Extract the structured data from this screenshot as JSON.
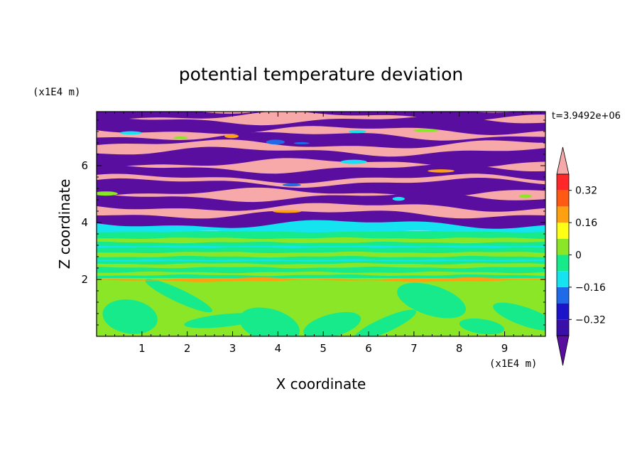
{
  "chart_data": {
    "type": "heatmap",
    "title": "potential temperature deviation",
    "xlabel": "X coordinate",
    "ylabel": "Z coordinate",
    "x_units": "(x1E4 m)",
    "y_units": "(x1E4 m)",
    "time_label": "t=3.9492e+06",
    "xlim": [
      0,
      9.9
    ],
    "ylim": [
      0,
      7.9
    ],
    "x_ticks": [
      1,
      2,
      3,
      4,
      5,
      6,
      7,
      8,
      9
    ],
    "y_ticks": [
      2,
      4,
      6
    ],
    "grid": false,
    "legend_position": "right",
    "colorbar": {
      "levels": [
        -0.4,
        -0.32,
        -0.24,
        -0.16,
        -0.08,
        0,
        0.08,
        0.16,
        0.24,
        0.32,
        0.4
      ],
      "colors": [
        "#5a0ea0",
        "#3a0fa8",
        "#1b14c8",
        "#1e6ae8",
        "#15e3f0",
        "#16ea8a",
        "#8ce628",
        "#ffff16",
        "#ffa010",
        "#ff5a14",
        "#ff2828",
        "#f7a8a8"
      ],
      "labeled_ticks": [
        {
          "value": 0.32,
          "label": "0.32"
        },
        {
          "value": 0.16,
          "label": "0.16"
        },
        {
          "value": 0,
          "label": "0"
        },
        {
          "value": -0.16,
          "label": "−0.16"
        },
        {
          "value": -0.32,
          "label": "−0.32"
        }
      ]
    },
    "field_layers": [
      {
        "z_from": 0.0,
        "z_to": 2.0,
        "pattern": "green/light-green turbulent mix"
      },
      {
        "z_from": 2.0,
        "z_to": 3.7,
        "pattern": "green and teal stratified layers"
      },
      {
        "z_from": 3.7,
        "z_to": 4.1,
        "pattern": "cyan band"
      },
      {
        "z_from": 4.1,
        "z_to": 7.9,
        "pattern": "alternating purple and pink layers"
      }
    ]
  }
}
